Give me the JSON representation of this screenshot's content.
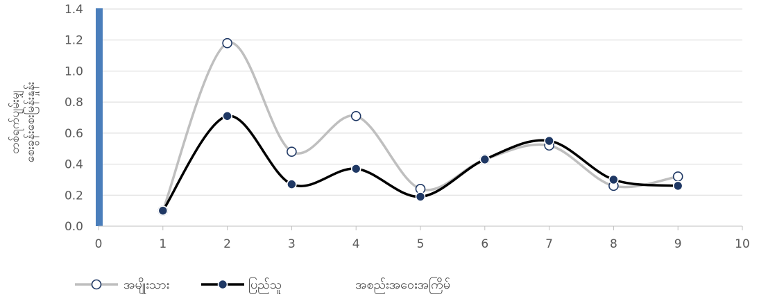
{
  "chart_data": {
    "type": "line",
    "smooth": true,
    "x_ticks": [
      "0",
      "1",
      "2",
      "3",
      "4",
      "5",
      "6",
      "7",
      "8",
      "9",
      "10"
    ],
    "y_ticks": [
      "0.0",
      "0.2",
      "0.4",
      "0.6",
      "0.8",
      "1.0",
      "1.2",
      "1.4"
    ],
    "xlim": [
      0,
      10
    ],
    "ylim": [
      0,
      1.4
    ],
    "grid": "horizontal",
    "legend_position": "bottom-left",
    "ylabel_line1": "တစ်ရက်ပျမ်းမျှ",
    "ylabel_line2": "စေးခွန်းစေးမြန်းနှုန်း",
    "series": [
      {
        "name": "အမျိုးသား",
        "color": "#bfbfbf",
        "marker_fill": "#ffffff",
        "marker_stroke": "#1f3864",
        "x": [
          1,
          2,
          3,
          4,
          5,
          6,
          7,
          8,
          9
        ],
        "y": [
          0.1,
          1.18,
          0.48,
          0.71,
          0.24,
          0.43,
          0.52,
          0.26,
          0.32
        ]
      },
      {
        "name": "ပြည်သူ",
        "color": "#000000",
        "marker_fill": "#1f3864",
        "marker_stroke": "#ffffff",
        "x": [
          1,
          2,
          3,
          4,
          5,
          6,
          7,
          8,
          9
        ],
        "y": [
          0.1,
          0.71,
          0.27,
          0.37,
          0.19,
          0.43,
          0.55,
          0.3,
          0.26
        ]
      }
    ],
    "extra_legend_label": "အစည်းအဝေးအကြိမ်",
    "accent_bar_color": "#4a7ebb"
  }
}
